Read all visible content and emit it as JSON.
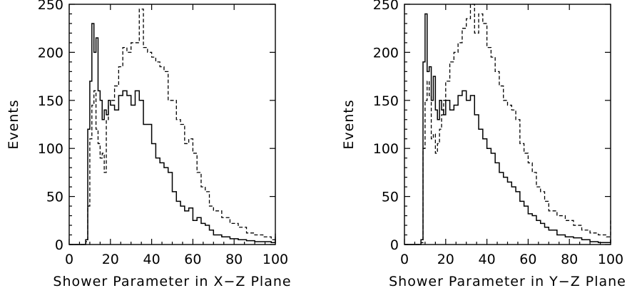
{
  "chart_data": [
    {
      "type": "line",
      "xlabel": "Shower Parameter in X−Z Plane",
      "ylabel": "Events",
      "xlim": [
        0,
        100
      ],
      "ylim": [
        0,
        250
      ],
      "xticks": [
        0,
        20,
        40,
        60,
        80,
        100
      ],
      "yticks": [
        0,
        50,
        100,
        150,
        200,
        250
      ],
      "step": "histogram",
      "series": [
        {
          "style": "solid",
          "x": [
            0,
            8,
            9,
            10,
            11,
            12,
            13,
            14,
            15,
            16,
            17,
            18,
            19,
            20,
            22,
            24,
            26,
            28,
            30,
            32,
            34,
            36,
            38,
            40,
            42,
            44,
            46,
            48,
            50,
            52,
            54,
            56,
            58,
            60,
            62,
            64,
            66,
            68,
            70,
            74,
            78,
            82,
            86,
            90,
            94,
            98,
            100
          ],
          "y": [
            0,
            5,
            120,
            170,
            230,
            200,
            215,
            160,
            150,
            130,
            140,
            135,
            150,
            145,
            140,
            155,
            160,
            155,
            145,
            160,
            150,
            125,
            125,
            105,
            90,
            85,
            80,
            75,
            55,
            45,
            40,
            35,
            38,
            25,
            28,
            22,
            20,
            15,
            10,
            8,
            6,
            5,
            4,
            3,
            3,
            2,
            8
          ]
        },
        {
          "style": "dashed",
          "x": [
            0,
            8,
            9,
            10,
            11,
            12,
            13,
            14,
            15,
            16,
            17,
            18,
            19,
            20,
            22,
            24,
            26,
            28,
            30,
            32,
            34,
            36,
            38,
            40,
            42,
            44,
            46,
            48,
            50,
            52,
            54,
            56,
            58,
            60,
            62,
            64,
            66,
            68,
            70,
            74,
            78,
            82,
            86,
            90,
            94,
            98,
            100
          ],
          "y": [
            0,
            3,
            40,
            110,
            145,
            160,
            120,
            105,
            90,
            95,
            75,
            130,
            145,
            150,
            165,
            185,
            205,
            200,
            210,
            210,
            245,
            205,
            200,
            195,
            190,
            185,
            180,
            150,
            150,
            130,
            125,
            105,
            110,
            95,
            75,
            60,
            55,
            40,
            35,
            28,
            22,
            18,
            12,
            10,
            8,
            5,
            12
          ]
        }
      ]
    },
    {
      "type": "line",
      "xlabel": "Shower Parameter in Y−Z Plane",
      "ylabel": "Events",
      "xlim": [
        0,
        100
      ],
      "ylim": [
        0,
        250
      ],
      "xticks": [
        0,
        20,
        40,
        60,
        80,
        100
      ],
      "yticks": [
        0,
        50,
        100,
        150,
        200,
        250
      ],
      "step": "histogram",
      "series": [
        {
          "style": "solid",
          "x": [
            0,
            8,
            9,
            10,
            11,
            12,
            13,
            14,
            15,
            16,
            17,
            18,
            19,
            20,
            22,
            24,
            26,
            28,
            30,
            32,
            34,
            36,
            38,
            40,
            42,
            44,
            46,
            48,
            50,
            52,
            54,
            56,
            58,
            60,
            62,
            64,
            66,
            68,
            70,
            74,
            78,
            82,
            86,
            90,
            94,
            98,
            100
          ],
          "y": [
            0,
            5,
            190,
            240,
            180,
            185,
            150,
            175,
            140,
            130,
            150,
            140,
            135,
            150,
            140,
            145,
            155,
            160,
            150,
            155,
            135,
            120,
            110,
            100,
            95,
            85,
            75,
            70,
            65,
            60,
            55,
            45,
            40,
            32,
            30,
            25,
            22,
            18,
            15,
            10,
            8,
            7,
            5,
            3,
            2,
            2,
            5
          ]
        },
        {
          "style": "dashed",
          "x": [
            0,
            8,
            9,
            10,
            11,
            12,
            13,
            14,
            15,
            16,
            17,
            18,
            19,
            20,
            22,
            24,
            26,
            28,
            30,
            32,
            34,
            36,
            38,
            40,
            42,
            44,
            46,
            48,
            50,
            52,
            54,
            56,
            58,
            60,
            62,
            64,
            66,
            68,
            70,
            74,
            78,
            82,
            86,
            90,
            94,
            98,
            100
          ],
          "y": [
            0,
            2,
            100,
            150,
            170,
            155,
            110,
            115,
            95,
            105,
            120,
            135,
            150,
            170,
            190,
            200,
            210,
            225,
            235,
            250,
            220,
            240,
            230,
            205,
            195,
            180,
            165,
            150,
            145,
            140,
            130,
            105,
            95,
            85,
            75,
            60,
            55,
            45,
            35,
            30,
            25,
            20,
            15,
            12,
            10,
            8,
            25
          ]
        }
      ]
    }
  ]
}
